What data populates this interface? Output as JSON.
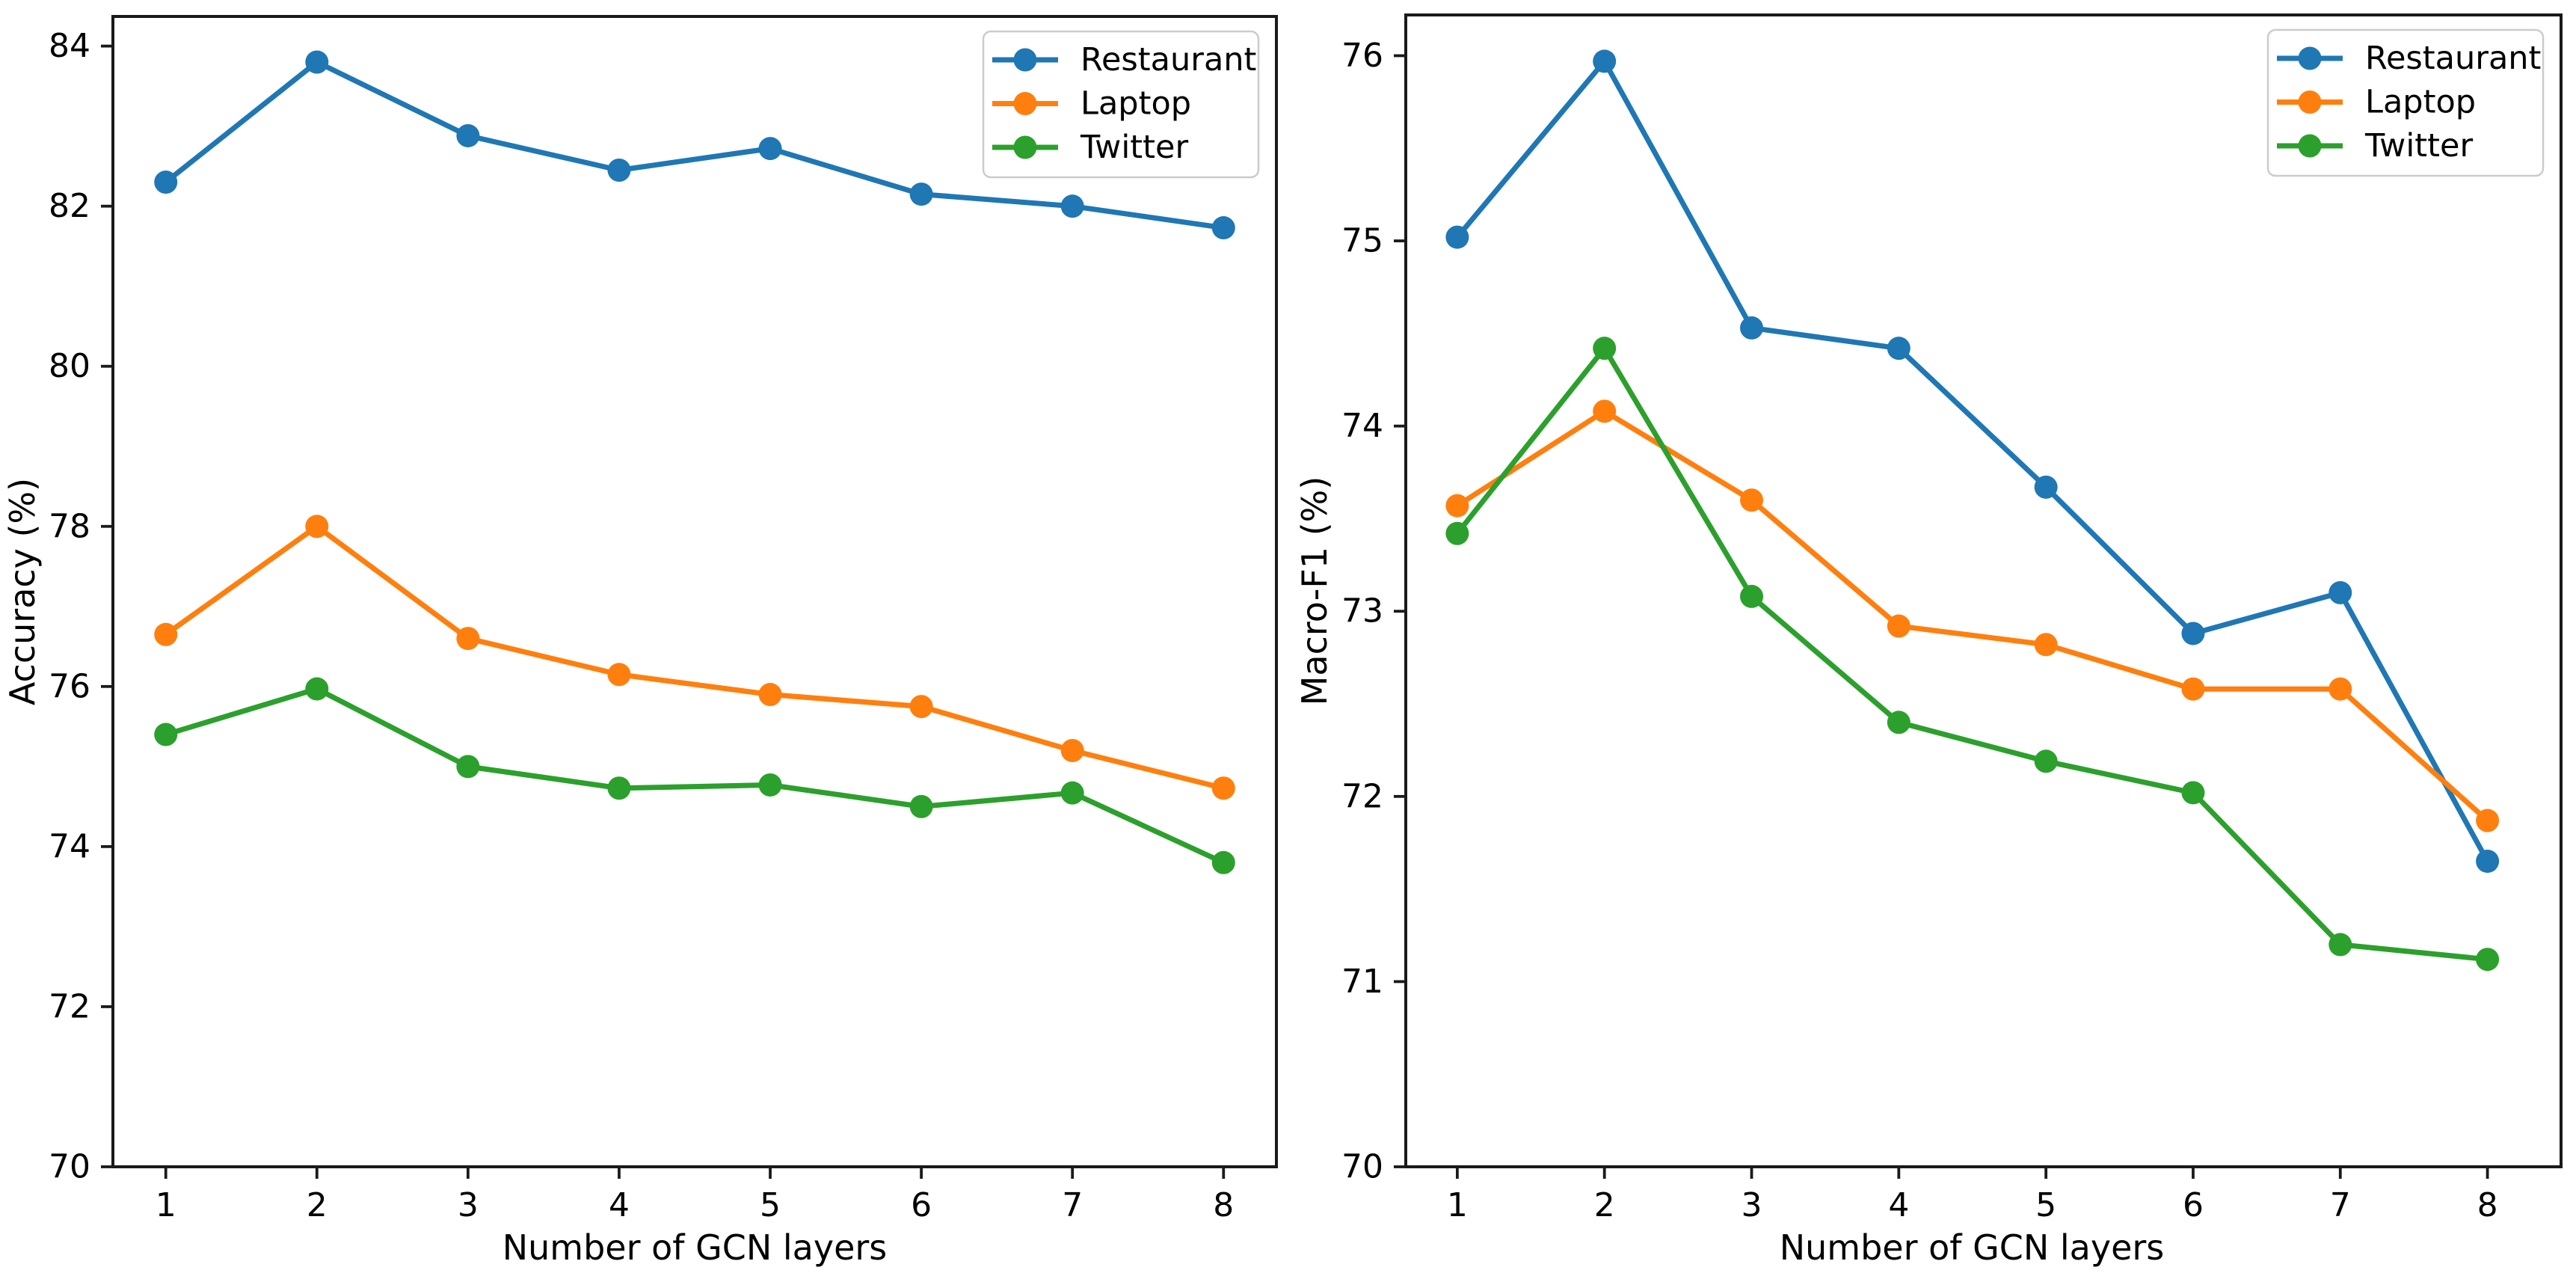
{
  "figure": {
    "background": "#ffffff",
    "text_color": "#000000",
    "spine_color": "#1a1a1a",
    "legend_border_color": "#cccccc",
    "legend_background": "#ffffff"
  },
  "chart_data": [
    {
      "type": "line",
      "title": "",
      "xlabel": "Number of GCN layers",
      "ylabel": "Accuracy (%)",
      "x": [
        1,
        2,
        3,
        4,
        5,
        6,
        7,
        8
      ],
      "xticks": [
        1,
        2,
        3,
        4,
        5,
        6,
        7,
        8
      ],
      "series": [
        {
          "name": "Restaurant",
          "color": "#1f77b4",
          "marker": "circle",
          "values": [
            82.3,
            83.8,
            82.88,
            82.45,
            82.72,
            82.15,
            82.0,
            81.73
          ]
        },
        {
          "name": "Laptop",
          "color": "#ff7f0e",
          "marker": "circle",
          "values": [
            76.65,
            78.0,
            76.6,
            76.15,
            75.9,
            75.75,
            75.2,
            74.73
          ]
        },
        {
          "name": "Twitter",
          "color": "#2ca02c",
          "marker": "circle",
          "values": [
            75.4,
            75.97,
            75.0,
            74.73,
            74.77,
            74.5,
            74.67,
            73.8
          ]
        }
      ],
      "ylim": [
        70,
        84.37
      ],
      "xlim": [
        0.65,
        8.35
      ],
      "yticks": [
        70,
        72,
        74,
        76,
        78,
        80,
        82,
        84
      ],
      "grid": false,
      "legend_position": "upper right"
    },
    {
      "type": "line",
      "title": "",
      "xlabel": "Number of GCN layers",
      "ylabel": "Macro-F1 (%)",
      "x": [
        1,
        2,
        3,
        4,
        5,
        6,
        7,
        8
      ],
      "xticks": [
        1,
        2,
        3,
        4,
        5,
        6,
        7,
        8
      ],
      "series": [
        {
          "name": "Restaurant",
          "color": "#1f77b4",
          "marker": "circle",
          "values": [
            75.02,
            75.97,
            74.53,
            74.42,
            73.67,
            72.88,
            73.1,
            71.65
          ]
        },
        {
          "name": "Laptop",
          "color": "#ff7f0e",
          "marker": "circle",
          "values": [
            73.57,
            74.08,
            73.6,
            72.92,
            72.82,
            72.58,
            72.58,
            71.87
          ]
        },
        {
          "name": "Twitter",
          "color": "#2ca02c",
          "marker": "circle",
          "values": [
            73.42,
            74.42,
            73.08,
            72.4,
            72.19,
            72.02,
            71.2,
            71.12
          ]
        }
      ],
      "ylim": [
        70,
        76.22
      ],
      "xlim": [
        0.65,
        8.5
      ],
      "yticks": [
        70,
        71,
        72,
        73,
        74,
        75,
        76
      ],
      "grid": false,
      "legend_position": "upper right"
    }
  ]
}
